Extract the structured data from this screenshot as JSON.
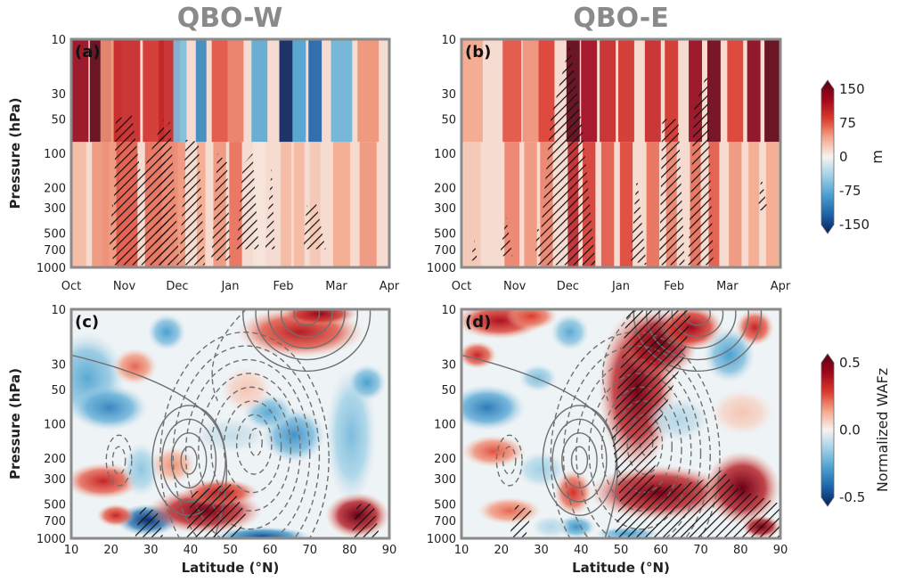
{
  "column_titles": [
    "QBO-W",
    "QBO-E"
  ],
  "colors": {
    "frame": "#8a8a8a",
    "title": "#8a8a8a",
    "contour": "#6f6f6f",
    "ramp": [
      "#06205e",
      "#1c63a8",
      "#4a9fd0",
      "#9fd0e6",
      "#f7f3f0",
      "#f4a78b",
      "#dc3a2c",
      "#a0061c",
      "#5c0012"
    ]
  },
  "chart_data": [
    {
      "panel": "(a)",
      "type": "heatmap",
      "title": "QBO-W",
      "xlabel": "",
      "ylabel": "Pressure (hPa)",
      "x_ticks": [
        "Oct",
        "Nov",
        "Dec",
        "Jan",
        "Feb",
        "Mar",
        "Apr"
      ],
      "y_ticks": [
        10,
        30,
        50,
        100,
        200,
        300,
        500,
        700,
        1000
      ],
      "y_scale": "log",
      "ylim": [
        1000,
        10
      ],
      "colorbar": {
        "ticks": [
          "150",
          "75",
          "0",
          "-75",
          "-150"
        ],
        "label": "m",
        "range": [
          -150,
          150
        ]
      },
      "hatching": "significant regions",
      "bands": [
        {
          "month": 0.1,
          "top": 0.8,
          "bottom": 0.2,
          "width": 0.45,
          "hatch": false
        },
        {
          "month": 0.55,
          "top": 1.0,
          "bottom": 0.3,
          "width": 0.4,
          "hatch": false
        },
        {
          "month": 0.75,
          "top": 0.3,
          "bottom": 0.3,
          "width": 0.4,
          "hatch": false
        },
        {
          "month": 1.05,
          "top": 0.6,
          "bottom": 0.45,
          "width": 0.5,
          "hatch": false
        },
        {
          "month": 1.55,
          "top": 0.55,
          "bottom": 0.4,
          "width": 0.4,
          "hatch": false
        },
        {
          "month": 1.85,
          "top": 0.6,
          "bottom": 0.35,
          "width": 0.4,
          "hatch": false
        },
        {
          "month": 2.05,
          "top": -0.35,
          "bottom": 0.3,
          "width": 0.25,
          "hatch": false
        },
        {
          "month": 2.45,
          "top": -0.6,
          "bottom": 0.25,
          "width": 0.2,
          "hatch": false
        },
        {
          "month": 2.8,
          "top": 0.45,
          "bottom": 0.3,
          "width": 0.3,
          "hatch": false
        },
        {
          "month": 3.1,
          "top": 0.35,
          "bottom": 0.4,
          "width": 0.3,
          "hatch": false
        },
        {
          "month": 3.55,
          "top": -0.45,
          "bottom": 0.05,
          "width": 0.3,
          "hatch": false
        },
        {
          "month": 4.05,
          "top": -1.0,
          "bottom": 0.2,
          "width": 0.25,
          "hatch": false
        },
        {
          "month": 4.3,
          "top": -0.5,
          "bottom": 0.2,
          "width": 0.25,
          "hatch": false
        },
        {
          "month": 4.6,
          "top": -0.75,
          "bottom": 0.15,
          "width": 0.25,
          "hatch": false
        },
        {
          "month": 5.1,
          "top": -0.4,
          "bottom": 0.25,
          "width": 0.4,
          "hatch": false
        },
        {
          "month": 5.6,
          "top": 0.3,
          "bottom": 0.3,
          "width": 0.4,
          "hatch": false
        }
      ]
    },
    {
      "panel": "(b)",
      "type": "heatmap",
      "title": "QBO-E",
      "xlabel": "",
      "ylabel": "",
      "x_ticks": [
        "Oct",
        "Nov",
        "Dec",
        "Jan",
        "Feb",
        "Mar",
        "Apr"
      ],
      "y_ticks": [
        10,
        30,
        50,
        100,
        200,
        300,
        500,
        700,
        1000
      ],
      "y_scale": "log",
      "ylim": [
        1000,
        10
      ],
      "colorbar": {
        "ticks": [
          "150",
          "75",
          "0",
          "-75",
          "-150"
        ],
        "label": "m",
        "range": [
          -150,
          150
        ]
      },
      "hatching": "significant regions",
      "bands": [
        {
          "month": 0.2,
          "top": 0.25,
          "bottom": 0.15,
          "width": 0.4,
          "hatch": false
        },
        {
          "month": 0.95,
          "top": 0.45,
          "bottom": 0.35,
          "width": 0.35,
          "hatch": false
        },
        {
          "month": 1.3,
          "top": 0.3,
          "bottom": 0.3,
          "width": 0.3,
          "hatch": false
        },
        {
          "month": 1.6,
          "top": 0.5,
          "bottom": 0.35,
          "width": 0.3,
          "hatch": false
        },
        {
          "month": 2.1,
          "top": 1.0,
          "bottom": 0.65,
          "width": 0.25,
          "hatch": false
        },
        {
          "month": 2.4,
          "top": 0.75,
          "bottom": 0.55,
          "width": 0.3,
          "hatch": false
        },
        {
          "month": 2.75,
          "top": 0.6,
          "bottom": 0.45,
          "width": 0.3,
          "hatch": false
        },
        {
          "month": 3.1,
          "top": 0.55,
          "bottom": 0.5,
          "width": 0.3,
          "hatch": false
        },
        {
          "month": 3.6,
          "top": 0.6,
          "bottom": 0.4,
          "width": 0.3,
          "hatch": false
        },
        {
          "month": 3.95,
          "top": 0.55,
          "bottom": 0.35,
          "width": 0.25,
          "hatch": false
        },
        {
          "month": 4.4,
          "top": 0.8,
          "bottom": 0.4,
          "width": 0.25,
          "hatch": false
        },
        {
          "month": 4.75,
          "top": 0.95,
          "bottom": 0.45,
          "width": 0.25,
          "hatch": false
        },
        {
          "month": 5.15,
          "top": 0.5,
          "bottom": 0.3,
          "width": 0.3,
          "hatch": false
        },
        {
          "month": 5.5,
          "top": 0.85,
          "bottom": 0.25,
          "width": 0.25,
          "hatch": false
        },
        {
          "month": 5.85,
          "top": 1.0,
          "bottom": 0.25,
          "width": 0.3,
          "hatch": false
        }
      ]
    },
    {
      "panel": "(c)",
      "type": "heatmap",
      "xlabel": "Latitude (°N)",
      "ylabel": "Pressure (hPa)",
      "x_ticks": [
        10,
        20,
        30,
        40,
        50,
        60,
        70,
        80,
        90
      ],
      "y_ticks": [
        10,
        30,
        50,
        100,
        200,
        300,
        500,
        700,
        1000
      ],
      "y_scale": "log",
      "xlim": [
        10,
        90
      ],
      "ylim": [
        1000,
        10
      ],
      "colorbar": {
        "ticks": [
          "0.5",
          "0.0",
          "-0.5"
        ],
        "label": "Normalized WAFz",
        "range": [
          -0.5,
          0.5
        ]
      },
      "contours": "solid positive, dashed negative",
      "hatching": "significant regions"
    },
    {
      "panel": "(d)",
      "type": "heatmap",
      "xlabel": "Latitude (°N)",
      "ylabel": "",
      "x_ticks": [
        10,
        20,
        30,
        40,
        50,
        60,
        70,
        80,
        90
      ],
      "y_ticks": [
        10,
        30,
        50,
        100,
        200,
        300,
        500,
        700,
        1000
      ],
      "y_scale": "log",
      "xlim": [
        10,
        90
      ],
      "ylim": [
        1000,
        10
      ],
      "colorbar": {
        "ticks": [
          "0.5",
          "0.0",
          "-0.5"
        ],
        "label": "Normalized WAFz",
        "range": [
          -0.5,
          0.5
        ]
      },
      "contours": "solid positive, dashed negative",
      "hatching": "significant regions"
    }
  ]
}
